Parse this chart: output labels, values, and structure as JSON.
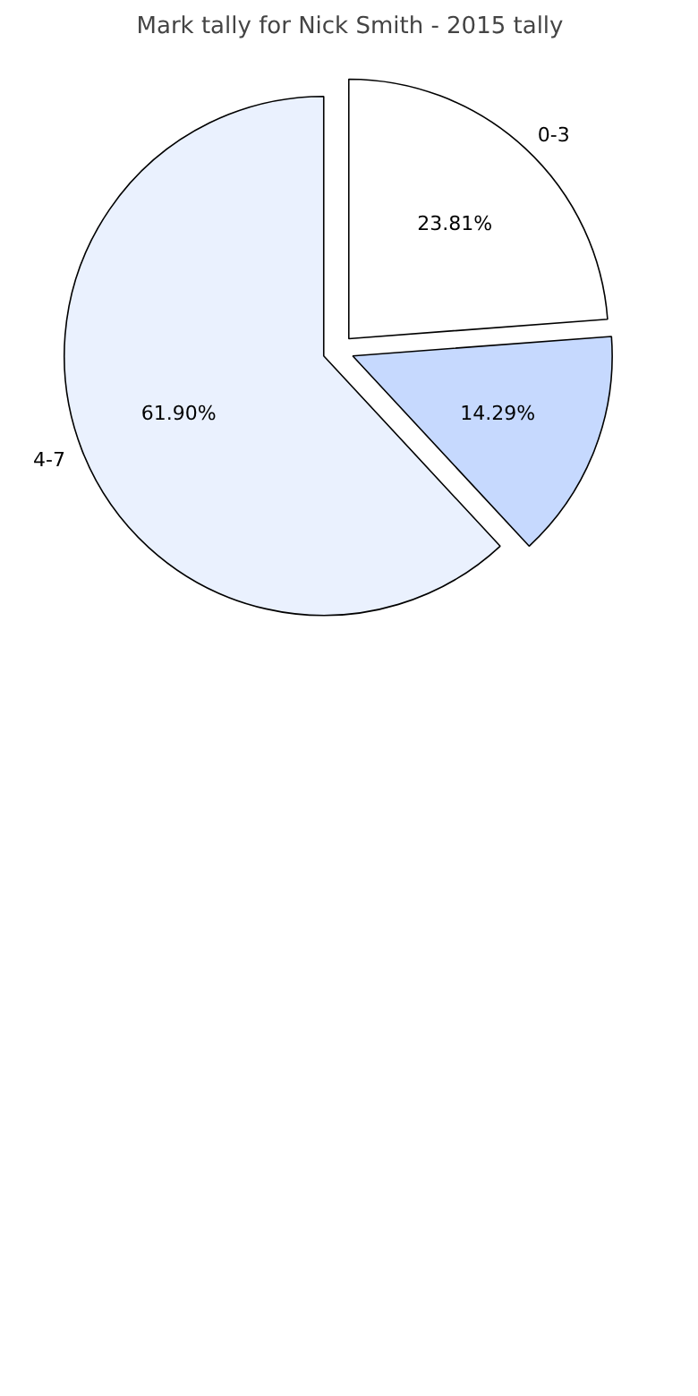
{
  "chart_data": {
    "type": "pie",
    "title": "Mark tally for Nick Smith - 2015 tally",
    "categories": [
      "0-3",
      null,
      "4-7"
    ],
    "values": [
      23.81,
      14.29,
      61.9
    ],
    "colors": [
      "#ffffff",
      "#c6d9fe",
      "#eaf1fe"
    ],
    "value_labels": [
      "23.81%",
      "14.29%",
      "61.90%"
    ]
  }
}
